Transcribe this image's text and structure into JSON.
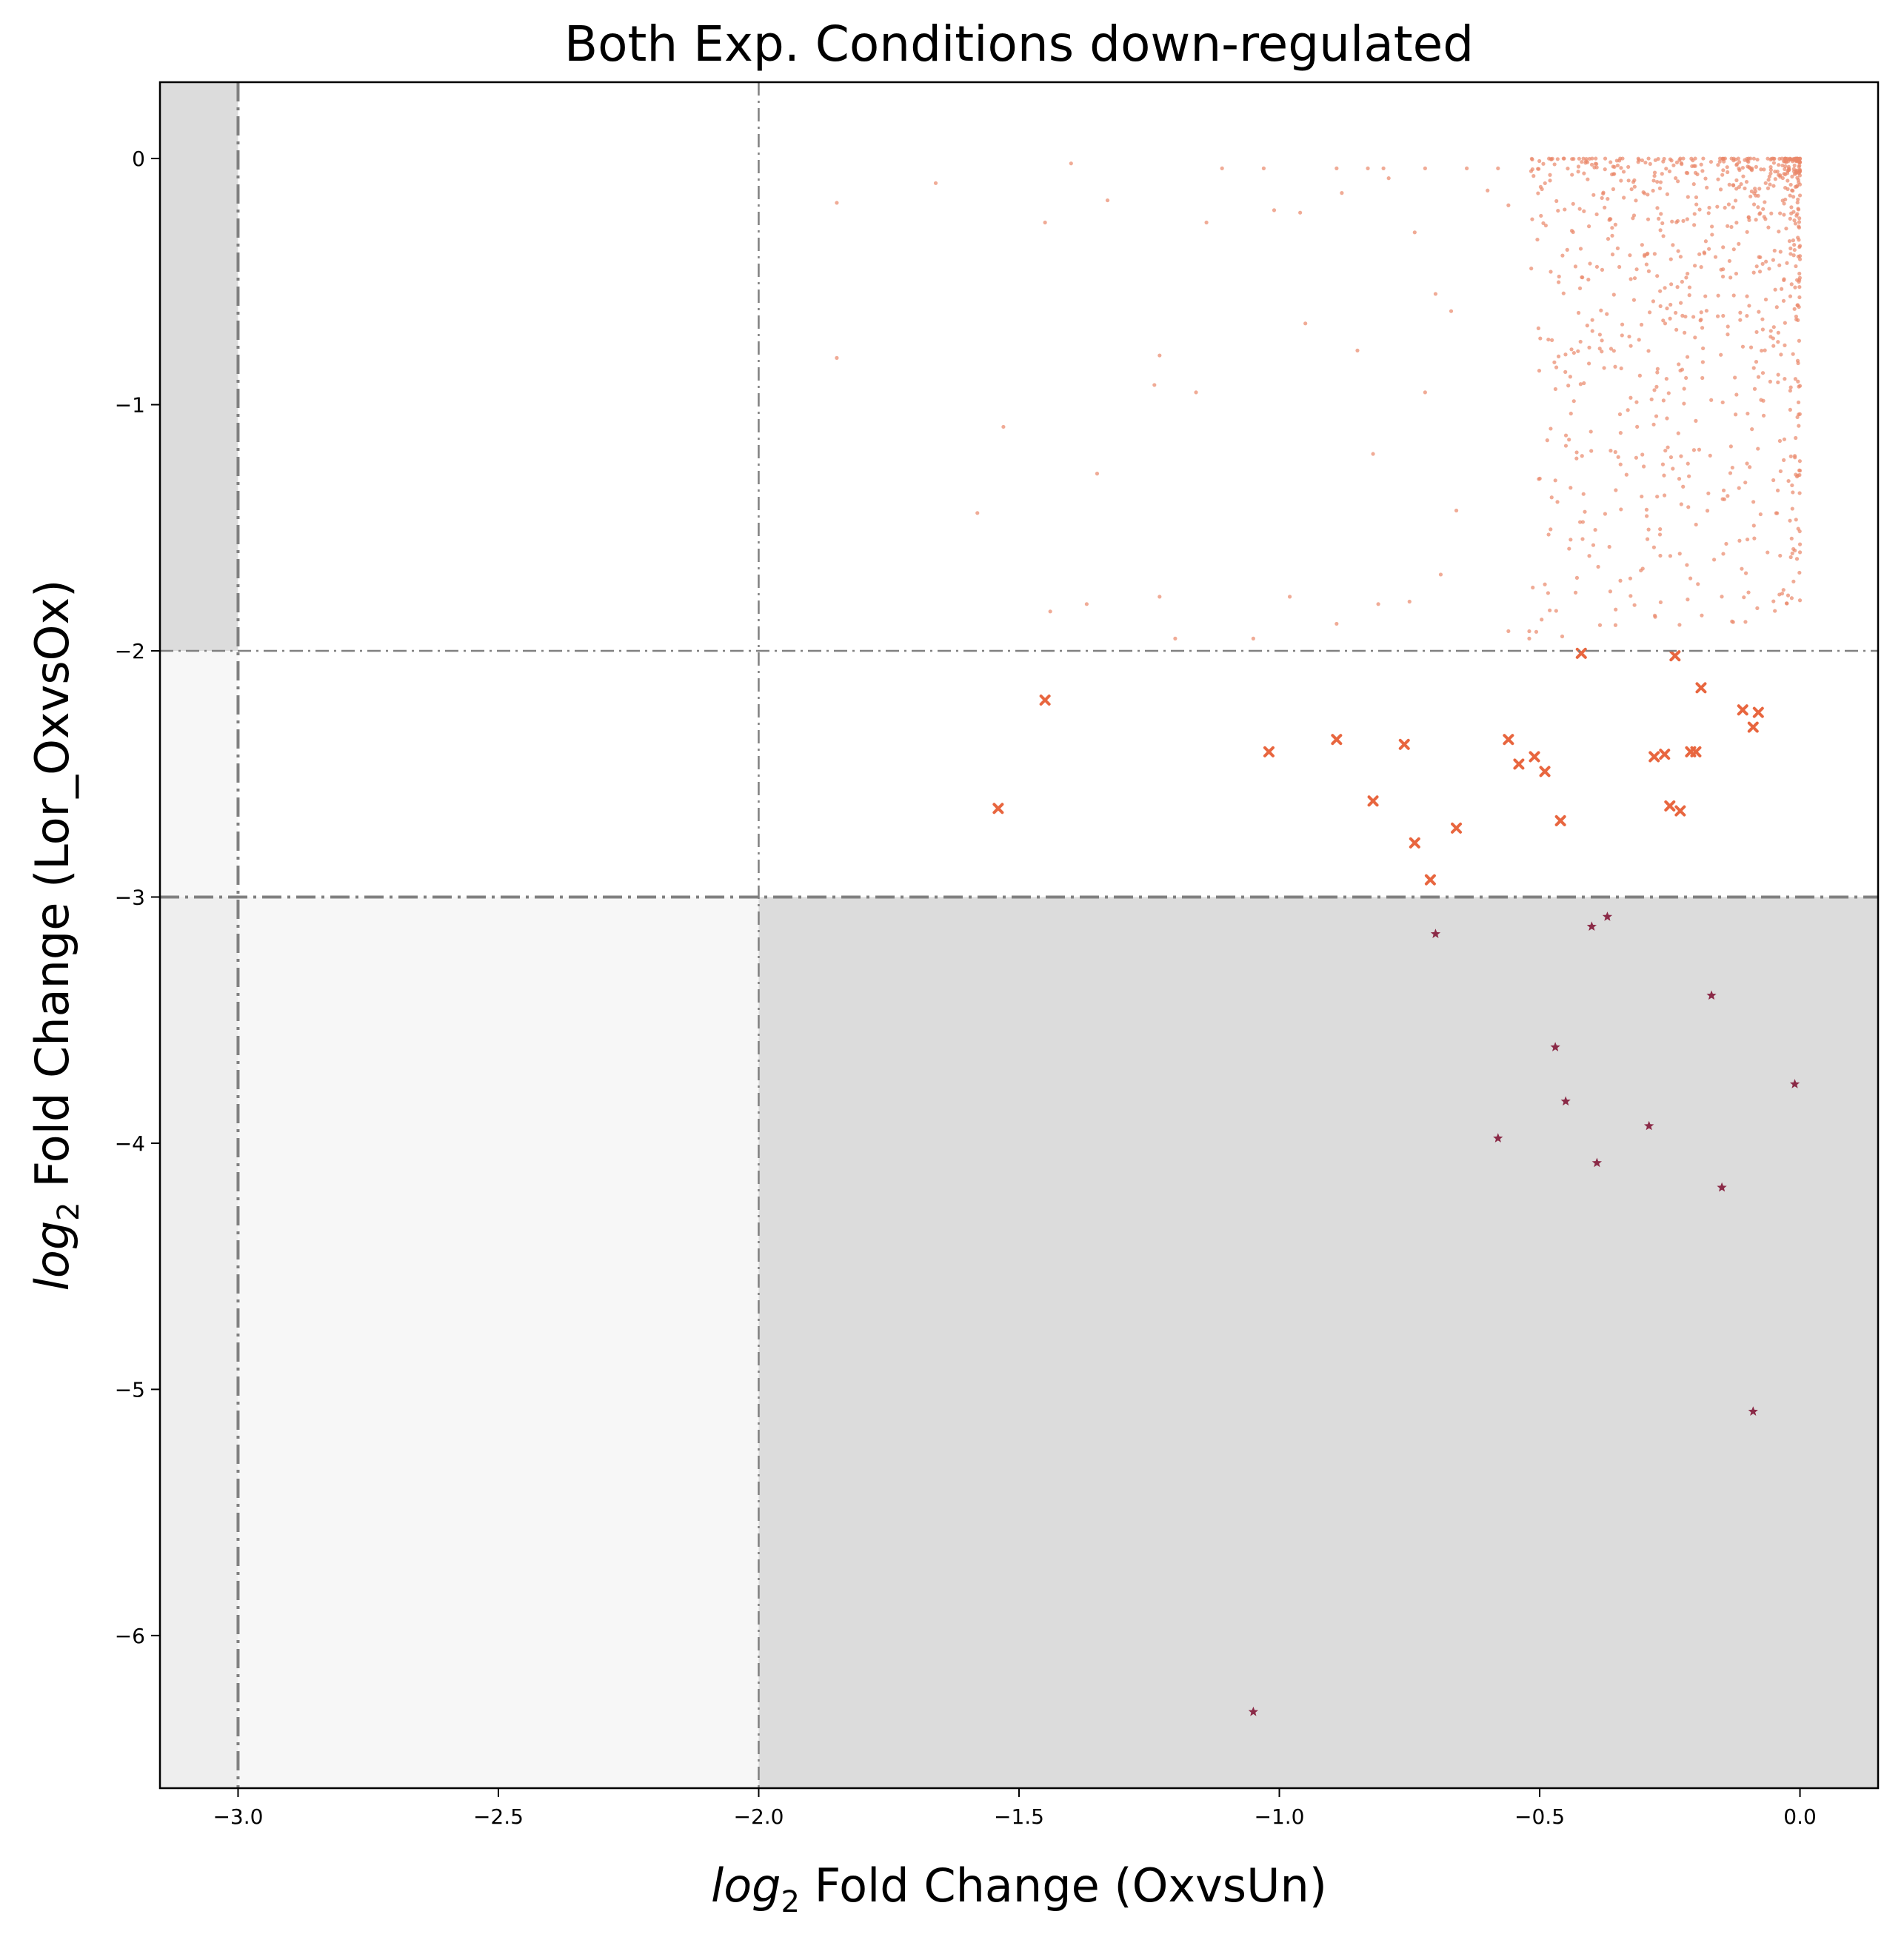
{
  "chart_data": {
    "type": "scatter",
    "title": "Both Exp. Conditions down-regulated",
    "xlabel_main": "log",
    "xlabel_sub": "2",
    "xlabel_rest": " Fold Change (OxvsUn)",
    "ylabel_main": "log",
    "ylabel_sub": "2",
    "ylabel_rest": " Fold Change (Lor_OxvsOx)",
    "xlim": [
      -3.15,
      0.15
    ],
    "ylim": [
      -6.62,
      0.31
    ],
    "x_ticks": [
      -3.0,
      -2.5,
      -2.0,
      -1.5,
      -1.0,
      -0.5,
      0.0
    ],
    "x_tick_labels": [
      "−3.0",
      "−2.5",
      "−2.0",
      "−1.5",
      "−1.0",
      "−0.5",
      "0.0"
    ],
    "y_ticks": [
      0,
      -1,
      -2,
      -3,
      -4,
      -5,
      -6
    ],
    "y_tick_labels": [
      "0",
      "−1",
      "−2",
      "−3",
      "−4",
      "−5",
      "−6"
    ],
    "grid": false,
    "threshold_lines": {
      "vertical": [
        -3.0,
        -2.0
      ],
      "horizontal": [
        -2.0,
        -3.0
      ]
    },
    "colors": {
      "dots": "#e9876a",
      "crosses": "#e8663f",
      "stars": "#8b2a47",
      "shade_dark": "#dcdcdc",
      "shade_mid": "#eeeeee",
      "shade_light": "#f7f7f7",
      "threshold": "#808080"
    },
    "series": [
      {
        "marker": "dot",
        "generated_count": 850,
        "x": [
          -1.85,
          -1.66,
          -1.4,
          -1.45,
          -1.33,
          -1.85,
          -1.58,
          -1.53,
          -1.35,
          -1.23,
          -1.16,
          -1.24,
          -1.14,
          -1.11,
          -1.03,
          -1.01,
          -0.96,
          -0.89,
          -0.88,
          -0.85,
          -0.83,
          -0.8,
          -0.79,
          -0.74,
          -0.72,
          -0.7,
          -0.67,
          -0.64,
          -0.6,
          -0.58,
          -0.56,
          -1.44,
          -1.37,
          -1.23,
          -1.2,
          -1.05,
          -0.98,
          -0.89,
          -0.82,
          -0.75,
          -0.69,
          -0.95,
          -0.81,
          -0.72,
          -0.66,
          -0.56,
          -0.52,
          -0.49
        ],
        "y": [
          -0.18,
          -0.1,
          -0.02,
          -0.26,
          -0.17,
          -0.81,
          -1.44,
          -1.09,
          -1.28,
          -0.8,
          -0.95,
          -0.92,
          -0.26,
          -0.04,
          -0.04,
          -0.21,
          -0.22,
          -0.04,
          -0.14,
          -0.78,
          -0.04,
          -0.04,
          -0.08,
          -0.3,
          -0.04,
          -0.55,
          -0.62,
          -0.04,
          -0.13,
          -0.04,
          -0.19,
          -1.84,
          -1.81,
          -1.78,
          -1.95,
          -1.95,
          -1.78,
          -1.89,
          -1.2,
          -1.8,
          -1.69,
          -0.67,
          -1.81,
          -0.95,
          -1.43,
          -1.92,
          -1.95,
          -1.73
        ]
      },
      {
        "marker": "cross",
        "x": [
          -1.45,
          -1.54,
          -1.02,
          -0.89,
          -0.82,
          -0.76,
          -0.74,
          -0.71,
          -0.66,
          -0.56,
          -0.54,
          -0.51,
          -0.49,
          -0.46,
          -0.42,
          -0.28,
          -0.26,
          -0.25,
          -0.24,
          -0.23,
          -0.21,
          -0.2,
          -0.19,
          -0.11,
          -0.09,
          -0.08
        ],
        "y": [
          -2.2,
          -2.64,
          -2.41,
          -2.36,
          -2.61,
          -2.38,
          -2.78,
          -2.93,
          -2.72,
          -2.36,
          -2.46,
          -2.43,
          -2.49,
          -2.69,
          -2.01,
          -2.43,
          -2.42,
          -2.63,
          -2.02,
          -2.65,
          -2.41,
          -2.41,
          -2.15,
          -2.24,
          -2.31,
          -2.25
        ]
      },
      {
        "marker": "star",
        "x": [
          -1.05,
          -0.7,
          -0.58,
          -0.47,
          -0.45,
          -0.4,
          -0.39,
          -0.37,
          -0.29,
          -0.17,
          -0.15,
          -0.09,
          -0.01
        ],
        "y": [
          -6.31,
          -3.15,
          -3.98,
          -3.61,
          -3.83,
          -3.12,
          -4.08,
          -3.08,
          -3.93,
          -3.4,
          -4.18,
          -5.09,
          -3.76
        ]
      }
    ]
  }
}
